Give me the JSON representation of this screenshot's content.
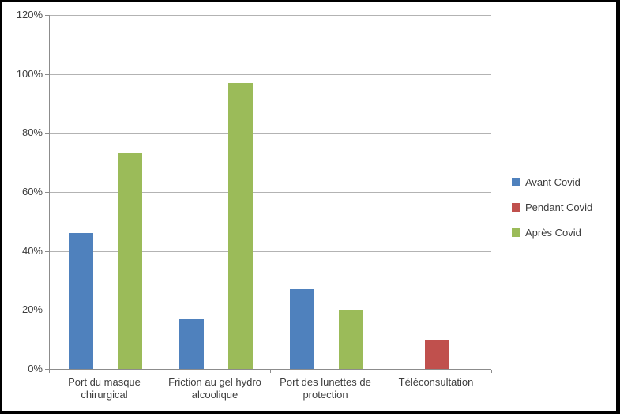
{
  "chart_data": {
    "type": "bar",
    "title": "",
    "xlabel": "",
    "ylabel": "",
    "categories": [
      "Port du masque chirurgical",
      "Friction au gel hydro alcoolique",
      "Port des lunettes de protection",
      "Téléconsultation"
    ],
    "series": [
      {
        "name": "Avant Covid",
        "color": "#4F81BD",
        "values": [
          46,
          17,
          27,
          0
        ]
      },
      {
        "name": "Pendant Covid",
        "color": "#C0504D",
        "values": [
          0,
          0,
          0,
          10
        ]
      },
      {
        "name": "Après Covid",
        "color": "#9BBB59",
        "values": [
          73,
          97,
          20,
          0
        ]
      }
    ],
    "ylim": [
      0,
      120
    ],
    "y_tick_step": 20,
    "y_tick_labels": [
      "0%",
      "20%",
      "40%",
      "60%",
      "80%",
      "100%",
      "120%"
    ],
    "grid": true,
    "legend_position": "right",
    "value_format": "percent"
  },
  "colors": {
    "frame_border": "#000000",
    "background": "#ffffff",
    "gridline": "#b3b3b3",
    "axis": "#8c8c8c",
    "text": "#3d3d3d"
  }
}
